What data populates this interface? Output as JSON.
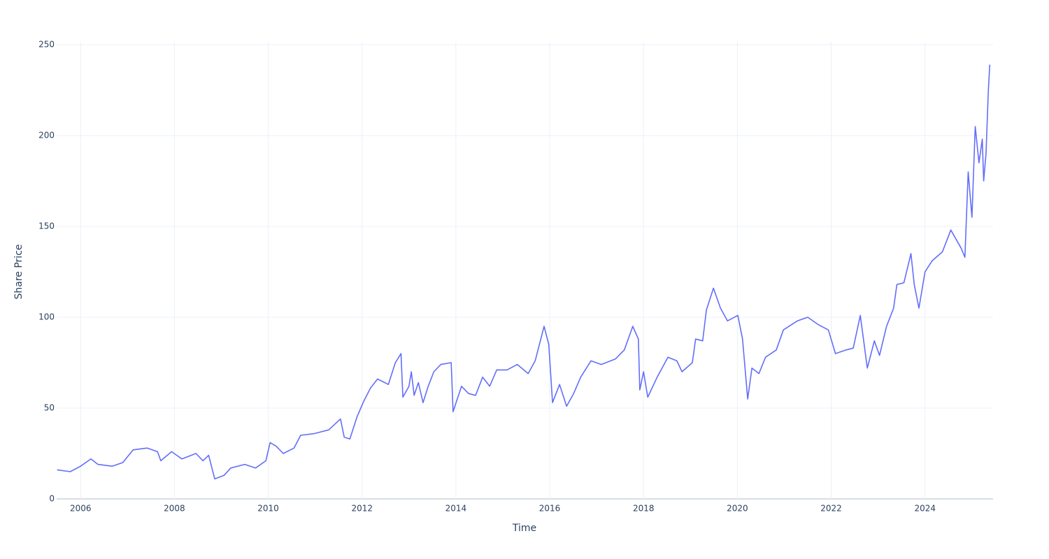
{
  "chart_data": {
    "type": "line",
    "x_label": "Time",
    "y_label": "Share Price",
    "x": [
      2005.5,
      2005.78,
      2006.0,
      2006.22,
      2006.37,
      2006.67,
      2006.9,
      2007.12,
      2007.42,
      2007.64,
      2007.71,
      2007.94,
      2008.16,
      2008.46,
      2008.61,
      2008.73,
      2008.86,
      2009.06,
      2009.2,
      2009.5,
      2009.73,
      2009.95,
      2010.04,
      2010.17,
      2010.32,
      2010.55,
      2010.69,
      2010.99,
      2011.29,
      2011.54,
      2011.62,
      2011.74,
      2011.89,
      2012.04,
      2012.18,
      2012.33,
      2012.56,
      2012.71,
      2012.83,
      2012.87,
      2013.0,
      2013.05,
      2013.11,
      2013.2,
      2013.3,
      2013.41,
      2013.53,
      2013.68,
      2013.9,
      2013.94,
      2014.12,
      2014.27,
      2014.42,
      2014.57,
      2014.72,
      2014.87,
      2015.09,
      2015.31,
      2015.54,
      2015.69,
      2015.88,
      2015.98,
      2016.06,
      2016.21,
      2016.36,
      2016.51,
      2016.66,
      2016.88,
      2017.1,
      2017.4,
      2017.59,
      2017.77,
      2017.89,
      2017.92,
      2018.0,
      2018.09,
      2018.29,
      2018.52,
      2018.71,
      2018.82,
      2019.04,
      2019.11,
      2019.26,
      2019.34,
      2019.49,
      2019.64,
      2019.79,
      2020.01,
      2020.11,
      2020.22,
      2020.31,
      2020.46,
      2020.6,
      2020.83,
      2020.98,
      2021.28,
      2021.5,
      2021.72,
      2021.94,
      2022.09,
      2022.32,
      2022.47,
      2022.62,
      2022.77,
      2022.92,
      2023.03,
      2023.18,
      2023.33,
      2023.4,
      2023.55,
      2023.7,
      2023.77,
      2023.87,
      2024.0,
      2024.15,
      2024.37,
      2024.55,
      2024.77,
      2024.85,
      2024.92,
      2025.0,
      2025.07,
      2025.15,
      2025.22,
      2025.25,
      2025.3,
      2025.35,
      2025.38
    ],
    "series": [
      {
        "color": "#636efa",
        "values": [
          16,
          15,
          18,
          22,
          19,
          18,
          20,
          27,
          28,
          26,
          21,
          26,
          22,
          25,
          21,
          24,
          11,
          13,
          17,
          19,
          17,
          21,
          31,
          29,
          25,
          28,
          35,
          36,
          38,
          44,
          34,
          33,
          45,
          54,
          61,
          66,
          63,
          75,
          80,
          56,
          62,
          70,
          57,
          64,
          53,
          62,
          70,
          74,
          75,
          48,
          62,
          58,
          57,
          67,
          62,
          71,
          71,
          74,
          69,
          76,
          95,
          85,
          53,
          63,
          51,
          58,
          67,
          76,
          74,
          77,
          82,
          95,
          88,
          60,
          70,
          56,
          67,
          78,
          76,
          70,
          75,
          88,
          87,
          104,
          116,
          105,
          98,
          101,
          88,
          55,
          72,
          69,
          78,
          82,
          93,
          98,
          100,
          96,
          93,
          80,
          82,
          83,
          101,
          72,
          87,
          79,
          95,
          105,
          118,
          119,
          135,
          118,
          105,
          125,
          131,
          136,
          148,
          138,
          133,
          180,
          155,
          205,
          185,
          198,
          175,
          190,
          225,
          239
        ]
      }
    ],
    "xlim": [
      2005.49,
      2025.45
    ],
    "xticks": [
      2006,
      2008,
      2010,
      2012,
      2014,
      2016,
      2018,
      2020,
      2022,
      2024
    ],
    "ylim": [
      0,
      250
    ],
    "yticks": [
      0,
      50,
      100,
      150,
      200,
      250
    ],
    "grid": true
  }
}
